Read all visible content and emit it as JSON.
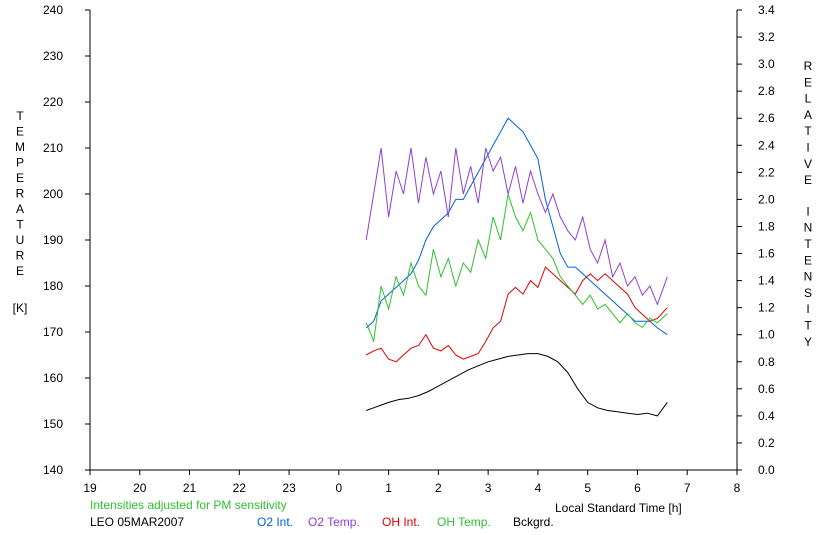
{
  "chart_data": {
    "type": "line",
    "xlabel": "Local Standard Time [h]",
    "ylabel_left_letters": [
      "T",
      "E",
      "M",
      "P",
      "E",
      "R",
      "A",
      "T",
      "U",
      "R",
      "E"
    ],
    "ylabel_left_unit": "[K]",
    "ylabel_right_letters": [
      "R",
      "E",
      "L",
      "A",
      "T",
      "I",
      "V",
      "E",
      "I",
      "N",
      "T",
      "E",
      "N",
      "S",
      "I",
      "T",
      "Y"
    ],
    "note": "Intensities adjusted for PM sensitivity",
    "station_date": "LEO 05MAR2007",
    "xlim": [
      -5,
      8
    ],
    "x_tick_labels": [
      "19",
      "20",
      "21",
      "22",
      "23",
      "0",
      "1",
      "2",
      "3",
      "4",
      "5",
      "6",
      "7",
      "8"
    ],
    "ylim_left": [
      140,
      240
    ],
    "y_left_ticks": [
      140,
      150,
      160,
      170,
      180,
      190,
      200,
      210,
      220,
      230,
      240
    ],
    "ylim_right": [
      0.0,
      3.4
    ],
    "y_right_ticks": [
      "0.0",
      "0.2",
      "0.4",
      "0.6",
      "0.8",
      "1.0",
      "1.2",
      "1.4",
      "1.6",
      "1.8",
      "2.0",
      "2.2",
      "2.4",
      "2.6",
      "2.8",
      "3.0",
      "3.2",
      "3.4"
    ],
    "grid": false,
    "legend_placement": "bottom",
    "series": [
      {
        "name": "O2 Int.",
        "axis": "right",
        "color": "#0060e0",
        "x": [
          0.55,
          0.7,
          0.85,
          1.0,
          1.15,
          1.3,
          1.45,
          1.6,
          1.75,
          1.9,
          2.05,
          2.2,
          2.35,
          2.5,
          2.65,
          2.8,
          2.95,
          3.1,
          3.25,
          3.4,
          3.55,
          3.7,
          3.85,
          4.0,
          4.15,
          4.3,
          4.45,
          4.6,
          4.75,
          4.9,
          5.05,
          5.2,
          5.35,
          5.5,
          5.65,
          5.8,
          5.95,
          6.1,
          6.25,
          6.4,
          6.6
        ],
        "y": [
          1.05,
          1.1,
          1.25,
          1.3,
          1.35,
          1.4,
          1.45,
          1.55,
          1.7,
          1.8,
          1.85,
          1.9,
          2.0,
          2.0,
          2.1,
          2.2,
          2.3,
          2.4,
          2.5,
          2.6,
          2.55,
          2.5,
          2.4,
          2.3,
          2.0,
          1.8,
          1.6,
          1.5,
          1.5,
          1.45,
          1.4,
          1.35,
          1.3,
          1.25,
          1.2,
          1.15,
          1.1,
          1.1,
          1.1,
          1.05,
          1.0
        ]
      },
      {
        "name": "O2 Temp.",
        "axis": "left",
        "color": "#9040d0",
        "x": [
          0.55,
          0.7,
          0.85,
          1.0,
          1.15,
          1.3,
          1.45,
          1.6,
          1.75,
          1.9,
          2.05,
          2.2,
          2.35,
          2.5,
          2.65,
          2.8,
          2.95,
          3.1,
          3.25,
          3.4,
          3.55,
          3.7,
          3.85,
          4.0,
          4.15,
          4.3,
          4.45,
          4.6,
          4.75,
          4.9,
          5.05,
          5.2,
          5.35,
          5.5,
          5.65,
          5.8,
          5.95,
          6.1,
          6.25,
          6.4,
          6.6
        ],
        "y": [
          190,
          200,
          210,
          195,
          205,
          200,
          210,
          198,
          208,
          200,
          205,
          195,
          210,
          200,
          206,
          198,
          210,
          205,
          208,
          200,
          206,
          198,
          205,
          200,
          196,
          200,
          195,
          192,
          190,
          195,
          188,
          185,
          190,
          182,
          185,
          180,
          182,
          178,
          180,
          176,
          182
        ]
      },
      {
        "name": "OH Int.",
        "axis": "right",
        "color": "#e00000",
        "x": [
          0.55,
          0.7,
          0.85,
          1.0,
          1.15,
          1.3,
          1.45,
          1.6,
          1.75,
          1.9,
          2.05,
          2.2,
          2.35,
          2.5,
          2.65,
          2.8,
          2.95,
          3.1,
          3.25,
          3.4,
          3.55,
          3.7,
          3.85,
          4.0,
          4.15,
          4.3,
          4.45,
          4.6,
          4.75,
          4.9,
          5.05,
          5.2,
          5.35,
          5.5,
          5.65,
          5.8,
          5.95,
          6.1,
          6.25,
          6.4,
          6.6
        ],
        "y": [
          0.85,
          0.88,
          0.9,
          0.82,
          0.8,
          0.85,
          0.9,
          0.92,
          1.0,
          0.9,
          0.88,
          0.92,
          0.85,
          0.82,
          0.84,
          0.86,
          0.95,
          1.05,
          1.1,
          1.3,
          1.35,
          1.3,
          1.4,
          1.35,
          1.5,
          1.45,
          1.4,
          1.35,
          1.3,
          1.4,
          1.45,
          1.4,
          1.45,
          1.4,
          1.35,
          1.3,
          1.2,
          1.15,
          1.1,
          1.12,
          1.2
        ]
      },
      {
        "name": "OH Temp.",
        "axis": "left",
        "color": "#30c030",
        "x": [
          0.55,
          0.7,
          0.85,
          1.0,
          1.15,
          1.3,
          1.45,
          1.6,
          1.75,
          1.9,
          2.05,
          2.2,
          2.35,
          2.5,
          2.65,
          2.8,
          2.95,
          3.1,
          3.25,
          3.4,
          3.55,
          3.7,
          3.85,
          4.0,
          4.15,
          4.3,
          4.45,
          4.6,
          4.75,
          4.9,
          5.05,
          5.2,
          5.35,
          5.5,
          5.65,
          5.8,
          5.95,
          6.1,
          6.25,
          6.4,
          6.6
        ],
        "y": [
          172,
          168,
          180,
          175,
          182,
          178,
          185,
          180,
          178,
          188,
          182,
          186,
          180,
          185,
          183,
          190,
          186,
          195,
          190,
          200,
          195,
          192,
          196,
          190,
          188,
          186,
          182,
          180,
          178,
          176,
          178,
          175,
          176,
          174,
          172,
          174,
          172,
          171,
          173,
          172,
          174
        ]
      },
      {
        "name": "Bckgrd.",
        "axis": "right",
        "color": "#000000",
        "x": [
          0.55,
          0.7,
          0.85,
          1.0,
          1.2,
          1.4,
          1.6,
          1.8,
          2.0,
          2.2,
          2.4,
          2.6,
          2.8,
          3.0,
          3.2,
          3.4,
          3.6,
          3.8,
          4.0,
          4.2,
          4.4,
          4.6,
          4.8,
          5.0,
          5.2,
          5.4,
          5.6,
          5.8,
          6.0,
          6.2,
          6.4,
          6.6
        ],
        "y": [
          0.44,
          0.46,
          0.48,
          0.5,
          0.52,
          0.53,
          0.55,
          0.58,
          0.62,
          0.66,
          0.7,
          0.74,
          0.77,
          0.8,
          0.82,
          0.84,
          0.85,
          0.86,
          0.86,
          0.84,
          0.8,
          0.72,
          0.6,
          0.5,
          0.46,
          0.44,
          0.43,
          0.42,
          0.41,
          0.42,
          0.4,
          0.5
        ]
      }
    ]
  }
}
